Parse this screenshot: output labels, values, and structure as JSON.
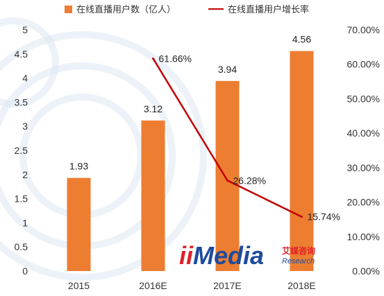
{
  "colors": {
    "bar": "#ED7D31",
    "line": "#C00000",
    "watermark": "#DCE8F2",
    "logo_red": "#E0202A",
    "logo_blue": "#1E4B9C"
  },
  "legend": {
    "bar_label": "在线直播用户数（亿人）",
    "line_label": "在线直播用户增长率"
  },
  "logo": {
    "text": "iiMedia",
    "cn": "艾媒咨询",
    "en": "Research"
  },
  "chart_data": {
    "type": "bar",
    "categories": [
      "2015",
      "2016E",
      "2017E",
      "2018E"
    ],
    "series": [
      {
        "name": "在线直播用户数（亿人）",
        "type": "bar",
        "axis": "left",
        "values": [
          1.93,
          3.12,
          3.94,
          4.56
        ],
        "labels": [
          "1.93",
          "3.12",
          "3.94",
          "4.56"
        ]
      },
      {
        "name": "在线直播用户增长率",
        "type": "line",
        "axis": "right",
        "values": [
          null,
          61.66,
          26.28,
          15.74
        ],
        "labels": [
          "",
          "61.66%",
          "26.28%",
          "15.74%"
        ]
      }
    ],
    "y_left": {
      "min": 0,
      "max": 5,
      "ticks": [
        "0",
        "0.5",
        "1",
        "1.5",
        "2",
        "2.5",
        "3",
        "3.5",
        "4",
        "4.5",
        "5"
      ]
    },
    "y_right": {
      "min": 0,
      "max": 70,
      "ticks": [
        "0.00%",
        "10.00%",
        "20.00%",
        "30.00%",
        "40.00%",
        "50.00%",
        "60.00%",
        "70.00%"
      ]
    },
    "grid": false,
    "legend_position": "top"
  }
}
